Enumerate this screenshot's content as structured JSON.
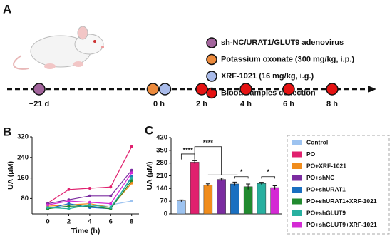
{
  "panel_labels": [
    "A",
    "B",
    "C"
  ],
  "timeline": {
    "legend": [
      {
        "label": "sh-NC/URAT1/GLUT9 adenovirus",
        "color": "#a2649c"
      },
      {
        "label": "Potassium oxonate (300 mg/kg, i.p.)",
        "color": "#ec8a3c"
      },
      {
        "label": "XRF-1021 (16 mg/kg, i.g.)",
        "color": "#a9bbea"
      },
      {
        "label": "Blood samples collection",
        "color": "#e51212"
      }
    ],
    "points": [
      {
        "label": "−21 d",
        "colors": [
          "#a2649c"
        ]
      },
      {
        "label": "0 h",
        "colors": [
          "#ec8a3c",
          "#a9bbea"
        ]
      },
      {
        "label": "2 h",
        "colors": [
          "#e51212"
        ]
      },
      {
        "label": "4 h",
        "colors": [
          "#e51212"
        ]
      },
      {
        "label": "6 h",
        "colors": [
          "#e51212"
        ]
      },
      {
        "label": "8 h",
        "colors": [
          "#e51212"
        ]
      }
    ]
  },
  "chart_data": [
    {
      "type": "line",
      "xlabel": "Time (h)",
      "ylabel": "UA (μM)",
      "x": [
        0,
        2,
        4,
        6,
        8
      ],
      "xlim": [
        -1.5,
        8.7
      ],
      "xticks": [
        0,
        2,
        4,
        6,
        8
      ],
      "ylim": [
        20,
        320
      ],
      "yticks": [
        80,
        160,
        240,
        320
      ],
      "series": [
        {
          "color": "#9dc3f0",
          "values": [
            45,
            50,
            50,
            55,
            70
          ]
        },
        {
          "color": "#e0206e",
          "values": [
            62,
            115,
            120,
            125,
            282
          ]
        },
        {
          "color": "#f08c1c",
          "values": [
            50,
            55,
            60,
            45,
            140
          ]
        },
        {
          "color": "#7b2ca0",
          "values": [
            60,
            75,
            90,
            90,
            190
          ]
        },
        {
          "color": "#1a6fc0",
          "values": [
            40,
            60,
            45,
            40,
            165
          ]
        },
        {
          "color": "#218a2f",
          "values": [
            40,
            50,
            50,
            40,
            150
          ]
        },
        {
          "color": "#28b0a0",
          "values": [
            45,
            40,
            55,
            45,
            160
          ]
        },
        {
          "color": "#d42ad4",
          "values": [
            55,
            70,
            65,
            60,
            180
          ]
        }
      ]
    },
    {
      "type": "bar",
      "ylabel": "UA (μM)",
      "categories": [
        "Control",
        "PO",
        "PO+XRF-1021",
        "PO+shNC",
        "PO+shURAT1",
        "PO+shURAT1+XRF-1021",
        "PO+shGLUT9",
        "PO+shGLUT9+XRF-1021"
      ],
      "values": [
        72,
        285,
        160,
        190,
        165,
        150,
        168,
        145
      ],
      "errors": [
        5,
        8,
        6,
        7,
        10,
        15,
        6,
        10
      ],
      "colors": [
        "#9dc3f0",
        "#e0206e",
        "#f08c1c",
        "#7b2ca0",
        "#1a6fc0",
        "#218a2f",
        "#28b0a0",
        "#d42ad4"
      ],
      "ylim": [
        0,
        420
      ],
      "yticks": [
        0,
        70,
        140,
        210,
        280,
        350,
        420
      ],
      "annotations": [
        "****",
        "****",
        "*",
        "*"
      ]
    }
  ]
}
